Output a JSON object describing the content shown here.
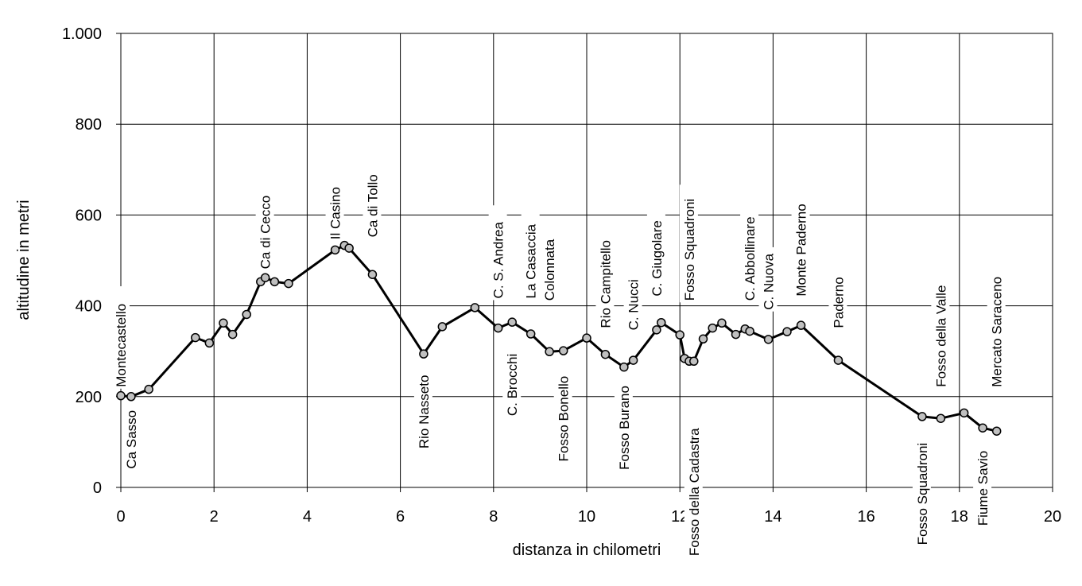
{
  "chart_data": {
    "type": "line",
    "xlabel": "distanza in chilometri",
    "ylabel": "altitudine  in metri",
    "xlim": [
      0,
      20
    ],
    "ylim": [
      0,
      1000
    ],
    "x_ticks": [
      0,
      2,
      4,
      6,
      8,
      10,
      12,
      14,
      16,
      18,
      20
    ],
    "x_tick_labels": [
      "0",
      "2",
      "4",
      "6",
      "8",
      "10",
      "12",
      "14",
      "16",
      "18",
      "20"
    ],
    "y_ticks": [
      0,
      200,
      400,
      600,
      800,
      1000
    ],
    "y_tick_labels": [
      "0",
      "200",
      "400",
      "600",
      "800",
      "1.000"
    ],
    "grid": true,
    "legend": "none",
    "line_color": "#000000",
    "marker_color": "#c0c0c0",
    "series": [
      {
        "x": [
          0,
          0.22,
          0.6,
          1.6,
          1.9,
          2.2,
          2.4,
          2.7,
          3.0,
          3.1,
          3.3,
          3.6,
          4.6,
          4.8,
          4.9,
          5.4,
          6.5,
          6.9,
          7.6,
          8.1,
          8.4,
          8.8,
          9.2,
          9.5,
          10.0,
          10.4,
          10.8,
          11.0,
          11.5,
          11.6,
          12.0,
          12.1,
          12.2,
          12.3,
          12.5,
          12.7,
          12.9,
          13.2,
          13.4,
          13.5,
          13.9,
          14.3,
          14.6,
          15.4,
          17.2,
          17.6,
          18.1,
          18.5,
          18.8
        ],
        "y": [
          202,
          200,
          216,
          330,
          318,
          362,
          337,
          381,
          453,
          462,
          453,
          449,
          523,
          533,
          527,
          469,
          294,
          354,
          396,
          351,
          364,
          338,
          299,
          301,
          329,
          293,
          265,
          280,
          347,
          363,
          336,
          284,
          278,
          278,
          327,
          351,
          362,
          337,
          349,
          344,
          326,
          343,
          357,
          280,
          156,
          152,
          164,
          131,
          124
        ]
      }
    ],
    "annotations": [
      {
        "text": "Montecastello",
        "x": 0.0,
        "y": 200,
        "placement": "above"
      },
      {
        "text": "Ca Sasso",
        "x": 0.22,
        "y": 200,
        "placement": "below"
      },
      {
        "text": "Ca di Cecco",
        "x": 3.1,
        "y": 460,
        "placement": "above"
      },
      {
        "text": "Il Casino",
        "x": 4.6,
        "y": 525,
        "placement": "above"
      },
      {
        "text": "Ca di Tollo",
        "x": 5.4,
        "y": 530,
        "placement": "above"
      },
      {
        "text": "Rio Nasseto",
        "x": 6.5,
        "y": 295,
        "placement": "below"
      },
      {
        "text": "C. S. Andrea",
        "x": 8.1,
        "y": 395,
        "placement": "above"
      },
      {
        "text": "C. Brocchi",
        "x": 8.4,
        "y": 350,
        "placement": "below"
      },
      {
        "text": "La Casaccia",
        "x": 8.8,
        "y": 395,
        "placement": "above"
      },
      {
        "text": "Colonnata",
        "x": 9.2,
        "y": 390,
        "placement": "above"
      },
      {
        "text": "Fosso Bonello",
        "x": 9.5,
        "y": 300,
        "placement": "below"
      },
      {
        "text": "Rio Campitello",
        "x": 10.4,
        "y": 330,
        "placement": "above"
      },
      {
        "text": "Fosso Burano",
        "x": 10.8,
        "y": 265,
        "placement": "below"
      },
      {
        "text": "C. Nucci",
        "x": 11.0,
        "y": 325,
        "placement": "above"
      },
      {
        "text": "C. Giugolare",
        "x": 11.5,
        "y": 400,
        "placement": "above"
      },
      {
        "text": "Fosso Squadroni",
        "x": 12.2,
        "y": 390,
        "placement": "above"
      },
      {
        "text": "Fosso della Cadastra",
        "x": 12.3,
        "y": 210,
        "placement": "below"
      },
      {
        "text": "C. Abbollinare",
        "x": 13.5,
        "y": 390,
        "placement": "above"
      },
      {
        "text": "C. Nuova",
        "x": 13.9,
        "y": 370,
        "placement": "above"
      },
      {
        "text": "Monte Paderno",
        "x": 14.6,
        "y": 400,
        "placement": "above"
      },
      {
        "text": "Paderno",
        "x": 15.4,
        "y": 330,
        "placement": "above"
      },
      {
        "text": "Fosso Squadroni",
        "x": 17.2,
        "y": 150,
        "placement": "below"
      },
      {
        "text": "Fosso della Valle",
        "x": 17.6,
        "y": 200,
        "placement": "above"
      },
      {
        "text": "Fiume Savio",
        "x": 18.5,
        "y": 125,
        "placement": "below"
      },
      {
        "text": "Mercato Saraceno",
        "x": 18.8,
        "y": 200,
        "placement": "above"
      }
    ]
  }
}
